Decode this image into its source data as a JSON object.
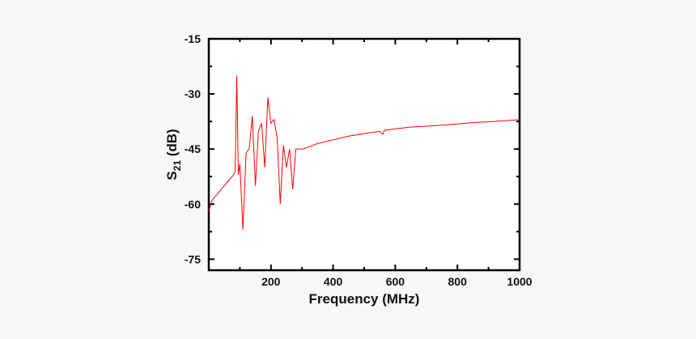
{
  "chart_data": {
    "type": "line",
    "title": "",
    "xlabel": "Frequency (MHz)",
    "ylabel": "S21 (dB)",
    "ylabel_parts": {
      "base": "S",
      "sub": "21",
      "tail": " (dB)"
    },
    "xlim": [
      0,
      1000
    ],
    "ylim": [
      -78,
      -15
    ],
    "xticks": [
      200,
      400,
      600,
      800,
      1000
    ],
    "yticks": [
      -15,
      -30,
      -45,
      -60,
      -75
    ],
    "grid": false,
    "line_color": "#ff0000",
    "series": [
      {
        "x": [
          0,
          10,
          20,
          30,
          40,
          50,
          60,
          70,
          80,
          85,
          90,
          95,
          100,
          110,
          120,
          130,
          140,
          150,
          160,
          170,
          180,
          190,
          200,
          210,
          220,
          230,
          240,
          250,
          260,
          270,
          280,
          290,
          300,
          320,
          350,
          400,
          450,
          500,
          550,
          560,
          565,
          600,
          650,
          700,
          750,
          800,
          850,
          900,
          950,
          1000
        ],
        "y": [
          -62,
          -59,
          -58,
          -57,
          -56,
          -55,
          -54,
          -53,
          -52,
          -51,
          -25,
          -52,
          -49,
          -67,
          -46,
          -45,
          -36,
          -55,
          -40,
          -38,
          -50,
          -31,
          -38,
          -37,
          -42,
          -60,
          -44,
          -50,
          -45,
          -56,
          -45,
          -45,
          -45,
          -44.5,
          -43.5,
          -42.5,
          -41.5,
          -40.8,
          -40.2,
          -41,
          -39.9,
          -39.5,
          -39,
          -38.8,
          -38.5,
          -38.2,
          -37.8,
          -37.6,
          -37.3,
          -37
        ]
      }
    ]
  }
}
